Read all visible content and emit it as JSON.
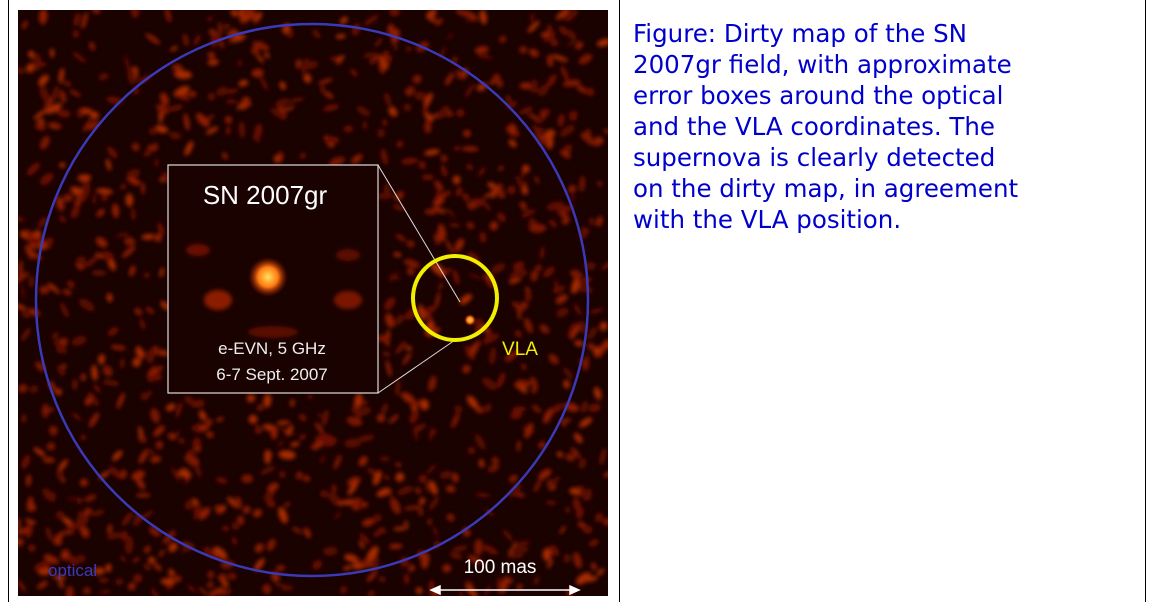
{
  "figure": {
    "inset_title": "SN 2007gr",
    "inset_lines": [
      "e-EVN, 5 GHz",
      "6-7 Sept. 2007"
    ],
    "vla_label": "VLA",
    "optical_label": "optical",
    "scale_label": "100 mas"
  },
  "caption": {
    "lines": [
      "Figure: Dirty map of the SN",
      "2007gr field, with approximate",
      "error boxes around the optical",
      "and the VLA coordinates. The",
      "supernova is clearly detected",
      "on the dirty map, in agreement",
      "with the VLA position."
    ]
  }
}
